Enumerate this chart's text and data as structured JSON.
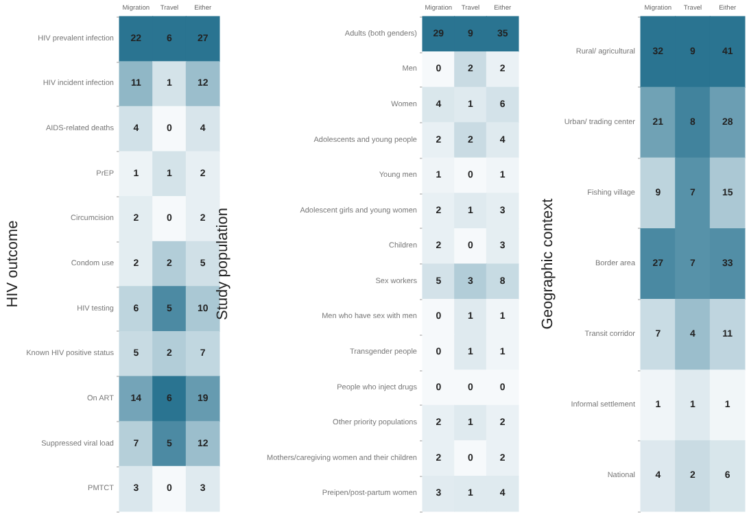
{
  "chart_data": [
    {
      "type": "heatmap",
      "ylabel": "HIV outcome",
      "categories": [
        "Migration",
        "Travel",
        "Either"
      ],
      "y_categories": [
        "HIV prevalent infection",
        "HIV incident infection",
        "AIDS-related deaths",
        "PrEP",
        "Circumcision",
        "Condom use",
        "HIV testing",
        "Known HIV positive status",
        "On ART",
        "Suppressed viral load",
        "PMTCT"
      ],
      "cells": [
        [
          22,
          6,
          27
        ],
        [
          11,
          1,
          12
        ],
        [
          4,
          0,
          4
        ],
        [
          1,
          1,
          2
        ],
        [
          2,
          0,
          2
        ],
        [
          2,
          2,
          5
        ],
        [
          6,
          5,
          10
        ],
        [
          5,
          2,
          7
        ],
        [
          14,
          6,
          19
        ],
        [
          7,
          5,
          12
        ],
        [
          3,
          0,
          3
        ]
      ],
      "data_labels": true,
      "grid": false
    },
    {
      "type": "heatmap",
      "ylabel": "Study population",
      "categories": [
        "Migration",
        "Travel",
        "Either"
      ],
      "y_categories": [
        "Adults (both genders)",
        "Men",
        "Women",
        "Adolescents and young people",
        "Young men",
        "Adolescent girls and young women",
        "Children",
        "Sex workers",
        "Men who have sex with men",
        "Transgender people",
        "People who inject drugs",
        "Other priority populations",
        "Mothers/caregiving women and their children",
        "Preipen/post-partum women"
      ],
      "cells": [
        [
          29,
          9,
          35
        ],
        [
          0,
          2,
          2
        ],
        [
          4,
          1,
          6
        ],
        [
          2,
          2,
          4
        ],
        [
          1,
          0,
          1
        ],
        [
          2,
          1,
          3
        ],
        [
          2,
          0,
          3
        ],
        [
          5,
          3,
          8
        ],
        [
          0,
          1,
          1
        ],
        [
          0,
          1,
          1
        ],
        [
          0,
          0,
          0
        ],
        [
          2,
          1,
          2
        ],
        [
          2,
          0,
          2
        ],
        [
          3,
          1,
          4
        ]
      ],
      "data_labels": true,
      "grid": false
    },
    {
      "type": "heatmap",
      "ylabel": "Geographic context",
      "categories": [
        "Migration",
        "Travel",
        "Either"
      ],
      "y_categories": [
        "Rural/ agricultural",
        "Urban/ trading center",
        "Fishing village",
        "Border area",
        "Transit corridor",
        "Informal settlement",
        "National"
      ],
      "cells": [
        [
          32,
          9,
          41
        ],
        [
          21,
          8,
          28
        ],
        [
          9,
          7,
          15
        ],
        [
          27,
          7,
          33
        ],
        [
          7,
          4,
          11
        ],
        [
          1,
          1,
          1
        ],
        [
          4,
          2,
          6
        ]
      ],
      "data_labels": true,
      "grid": false
    }
  ]
}
